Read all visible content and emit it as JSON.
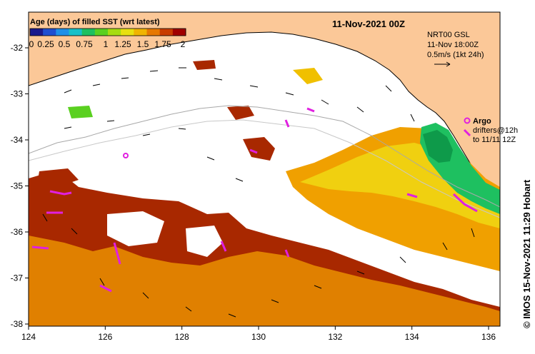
{
  "map": {
    "title": "11-Nov-2021 00Z",
    "colorbar": {
      "title": "Age (days) of filled SST (wrt latest)",
      "ticks": [
        "0",
        "0.25",
        "0.5",
        "0.75",
        "1",
        "1.25",
        "1.5",
        "1.75",
        "2"
      ],
      "colors": [
        "#1a1a8c",
        "#1f4fd0",
        "#1e90e8",
        "#18c0c8",
        "#1ec060",
        "#5ad020",
        "#a6dc10",
        "#e8e010",
        "#f0b400",
        "#e67800",
        "#c83c00",
        "#a00000"
      ]
    },
    "legend": {
      "line1": "NRT00 GSL",
      "line2": "11-Nov 18:00Z",
      "line3": "0.5m/s (1kt 24h)"
    },
    "argo": {
      "label": "Argo",
      "line1": "drifters@12h",
      "line2": "to 11/11 12Z"
    },
    "credit": "© IMOS 15-Nov-2021 11:29 Hobart",
    "x_ticks": [
      "124",
      "126",
      "128",
      "130",
      "132",
      "134",
      "136"
    ],
    "y_ticks": [
      "-32",
      "-33",
      "-34",
      "-35",
      "-36",
      "-37",
      "-38"
    ],
    "colors": {
      "land": "#fbc898",
      "ocean_blank": "#ffffff",
      "coastline": "#000000",
      "argo": "#e020e0"
    }
  }
}
